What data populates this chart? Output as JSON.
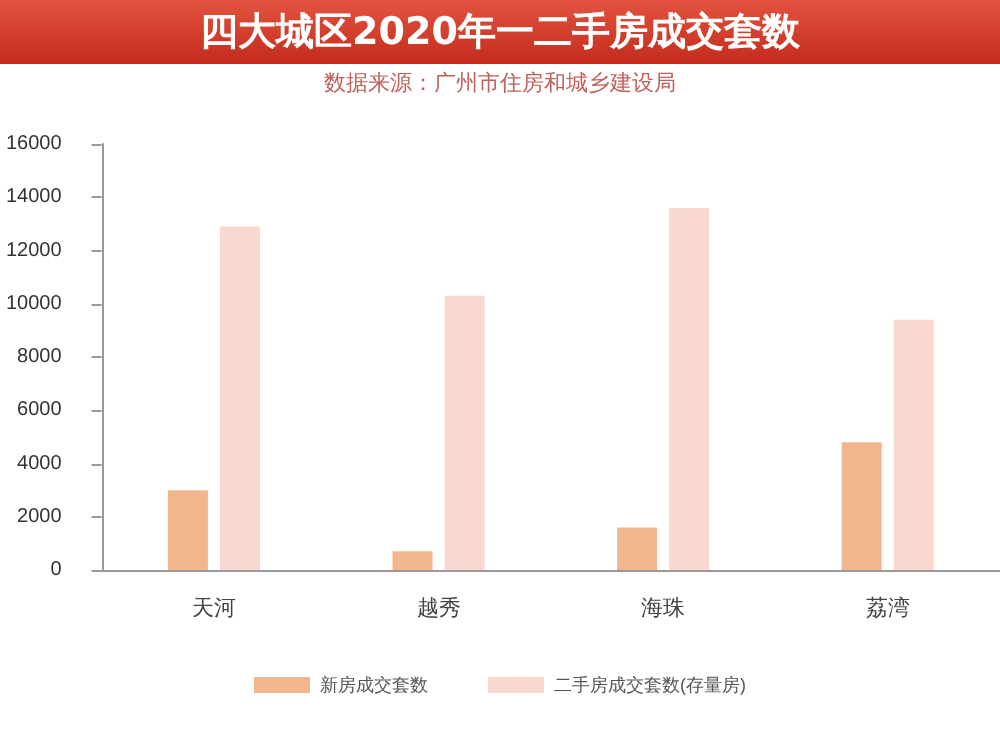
{
  "chart_data": {
    "type": "bar",
    "title": "四大城区2020年一二手房成交套数",
    "subtitle": "数据来源：广州市住房和城乡建设局",
    "categories": [
      "天河",
      "越秀",
      "海珠",
      "荔湾"
    ],
    "series": [
      {
        "name": "新房成交套数",
        "color": "#f3b58c",
        "values": [
          3000,
          700,
          1600,
          4800
        ]
      },
      {
        "name": "二手房成交套数(存量房)",
        "color": "#f9d8cf",
        "values": [
          12900,
          10300,
          13600,
          9400
        ]
      }
    ],
    "ylim": [
      0,
      16000
    ],
    "yticks": [
      0,
      2000,
      4000,
      6000,
      8000,
      10000,
      12000,
      14000,
      16000
    ],
    "grid": false,
    "legend": "bottom"
  }
}
